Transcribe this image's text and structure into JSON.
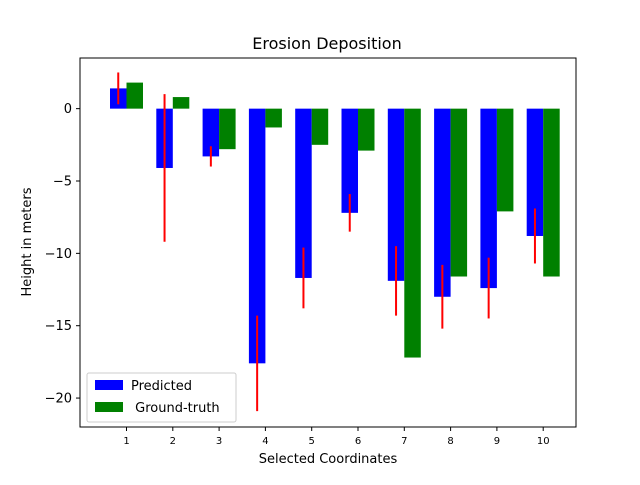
{
  "chart_data": {
    "type": "bar",
    "title": "Erosion Deposition",
    "xlabel": "Selected Coordinates",
    "ylabel": "Height in meters",
    "categories": [
      "1",
      "2",
      "3",
      "4",
      "5",
      "6",
      "7",
      "8",
      "9",
      "10"
    ],
    "ylim": [
      -22,
      3.5
    ],
    "yticks": [
      0,
      -5,
      -10,
      -15,
      -20
    ],
    "ytick_labels": [
      "0",
      "−5",
      "−10",
      "−15",
      "−20"
    ],
    "grid": false,
    "legend_position": "lower-left",
    "series": [
      {
        "name": "Predicted",
        "color": "#0000ff",
        "values": [
          1.4,
          -4.1,
          -3.3,
          -17.6,
          -11.7,
          -7.2,
          -11.9,
          -13.0,
          -12.4,
          -8.8
        ],
        "error": [
          1.1,
          5.1,
          0.7,
          3.3,
          2.1,
          1.3,
          2.4,
          2.2,
          2.1,
          1.9
        ]
      },
      {
        "name": " Ground-truth",
        "color": "#008000",
        "values": [
          1.8,
          0.8,
          -2.8,
          -1.3,
          -2.5,
          -2.9,
          -17.2,
          -11.6,
          -7.1,
          -11.6
        ]
      }
    ],
    "error_bar_color": "#ff0000"
  }
}
